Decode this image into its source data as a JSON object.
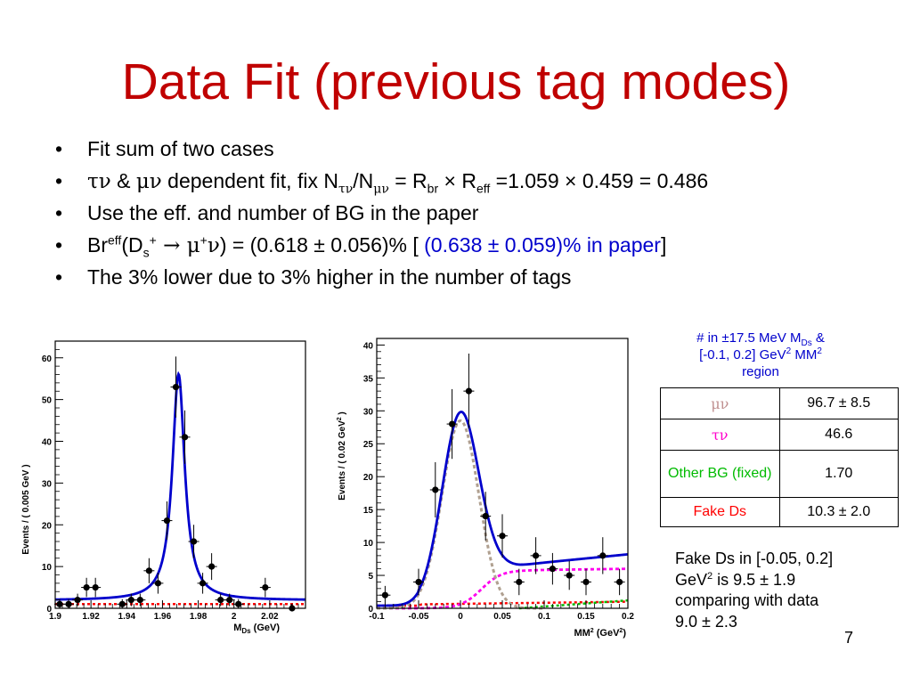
{
  "slide": {
    "title": "Data Fit (previous tag modes)",
    "page_number": "7"
  },
  "bullets": {
    "b1": "Fit sum of two cases",
    "b2": {
      "tau_nu": "τν",
      "amp": " & ",
      "mu_nu": "μν",
      "mid": " dependent fit, fix N",
      "sub1": "τν",
      "slash": "/N",
      "sub2": "μν",
      "eq": " = R",
      "sub3": "br",
      "times": " × R",
      "sub4": "eff",
      "tail": " =1.059 × 0.459 = 0.486"
    },
    "b3": "Use the eff. and number of BG in the paper",
    "b4": {
      "br": "Br",
      "sup_eff": "eff",
      "open": "(D",
      "sub_s": "s",
      "sup_plus": "+",
      "arrow": " → ",
      "mu": "μ",
      "sup_plus2": "+",
      "nu": "ν",
      "close": ") = (0.618 ± 0.056)%  [ ",
      "paper_val": "(0.638 ± 0.059)% in paper",
      "end": "]"
    },
    "b5": "The 3% lower due to 3% higher in the number of tags"
  },
  "region_note": {
    "l1a": "# in ±17.5 MeV M",
    "l1sub": "Ds",
    "l1b": " &",
    "l2a": "[-0.1, 0.2] GeV",
    "l2sup": "2",
    "l2b": " MM",
    "l2sup2": "2",
    "l3": "region"
  },
  "yield_table": {
    "rows": [
      {
        "label": "μν",
        "value": "96.7 ± 8.5",
        "color": "#c09090"
      },
      {
        "label": "τν",
        "value": "46.6",
        "color": "#ff00cc"
      },
      {
        "label": "Other BG (fixed)",
        "value": "1.70",
        "color": "#00bb00"
      },
      {
        "label": "Fake Ds",
        "value": "10.3 ± 2.0",
        "color": "#ff0000"
      }
    ]
  },
  "fake_note": {
    "t1": "Fake Ds in [-0.05, 0.2]",
    "t2a": "GeV",
    "t2sup": "2",
    "t2b": " is 9.5 ± 1.9",
    "t3": "comparing with data",
    "t4": "9.0 ± 2.3"
  },
  "chart_data": [
    {
      "type": "scatter",
      "ylabel": "Events / ( 0.005 GeV )",
      "xlabel_main": "M",
      "xlabel_sub": "Ds",
      "xlabel_unit": " (GeV)",
      "xlim": [
        1.9,
        2.04
      ],
      "ylim": [
        0,
        64
      ],
      "xticks": [
        1.9,
        1.92,
        1.94,
        1.96,
        1.98,
        2.0,
        2.02
      ],
      "xtick_labels": [
        "1.9",
        "1.92",
        "1.94",
        "1.96",
        "1.98",
        "2",
        "2.02"
      ],
      "yticks": [
        0,
        10,
        20,
        30,
        40,
        50,
        60
      ],
      "ytick_labels": [
        "0",
        "10",
        "20",
        "30",
        "40",
        "50",
        "60"
      ],
      "points": [
        {
          "x": 1.9025,
          "y": 1,
          "err": 1.2
        },
        {
          "x": 1.9075,
          "y": 1,
          "err": 1.2
        },
        {
          "x": 1.9125,
          "y": 2,
          "err": 1.5
        },
        {
          "x": 1.9175,
          "y": 5,
          "err": 2.3
        },
        {
          "x": 1.9225,
          "y": 5,
          "err": 2.3
        },
        {
          "x": 1.9375,
          "y": 1,
          "err": 1.2
        },
        {
          "x": 1.9425,
          "y": 2,
          "err": 1.5
        },
        {
          "x": 1.9475,
          "y": 2,
          "err": 1.5
        },
        {
          "x": 1.9525,
          "y": 9,
          "err": 3
        },
        {
          "x": 1.9575,
          "y": 6,
          "err": 2.5
        },
        {
          "x": 1.9625,
          "y": 21,
          "err": 4.6
        },
        {
          "x": 1.9675,
          "y": 53,
          "err": 7.3
        },
        {
          "x": 1.9725,
          "y": 41,
          "err": 6.4
        },
        {
          "x": 1.9775,
          "y": 16,
          "err": 4
        },
        {
          "x": 1.9825,
          "y": 6,
          "err": 2.5
        },
        {
          "x": 1.9875,
          "y": 10,
          "err": 3.2
        },
        {
          "x": 1.9925,
          "y": 2,
          "err": 1.5
        },
        {
          "x": 1.9975,
          "y": 2,
          "err": 1.5
        },
        {
          "x": 2.0025,
          "y": 1,
          "err": 1.2
        },
        {
          "x": 2.0175,
          "y": 5,
          "err": 2.3
        },
        {
          "x": 2.0325,
          "y": 0,
          "err": 1.1
        }
      ],
      "fit_signal": {
        "mean": 1.969,
        "width": 0.0042,
        "amplitude": 54.2,
        "baseline": 1.9
      },
      "fit_background_level": 1.0,
      "colors": {
        "fit": "#0000cc",
        "background": "#ff0000",
        "points": "#000000"
      }
    },
    {
      "type": "scatter",
      "ylabel": "Events / ( 0.02 GeV",
      "ylabel_sup": "2",
      "ylabel_end": " )",
      "xlabel_main": "MM",
      "xlabel_sup": "2",
      "xlabel_unit_a": " (GeV",
      "xlabel_unit_sup": "2",
      "xlabel_unit_b": ")",
      "xlim": [
        -0.1,
        0.2
      ],
      "ylim": [
        0,
        41
      ],
      "xticks": [
        -0.1,
        -0.05,
        0,
        0.05,
        0.1,
        0.15,
        0.2
      ],
      "xtick_labels": [
        "-0.1",
        "-0.05",
        "0",
        "0.05",
        "0.1",
        "0.15",
        "0.2"
      ],
      "yticks": [
        0,
        5,
        10,
        15,
        20,
        25,
        30,
        35,
        40
      ],
      "ytick_labels": [
        "0",
        "5",
        "10",
        "15",
        "20",
        "25",
        "30",
        "35",
        "40"
      ],
      "points": [
        {
          "x": -0.09,
          "y": 2,
          "err": 1.4
        },
        {
          "x": -0.05,
          "y": 4,
          "err": 2
        },
        {
          "x": -0.03,
          "y": 18,
          "err": 4.2
        },
        {
          "x": -0.01,
          "y": 28,
          "err": 5.3
        },
        {
          "x": 0.01,
          "y": 33,
          "err": 5.7
        },
        {
          "x": 0.03,
          "y": 14,
          "err": 3.7
        },
        {
          "x": 0.05,
          "y": 11,
          "err": 3.3
        },
        {
          "x": 0.07,
          "y": 4,
          "err": 2
        },
        {
          "x": 0.09,
          "y": 8,
          "err": 2.8
        },
        {
          "x": 0.11,
          "y": 6,
          "err": 2.4
        },
        {
          "x": 0.13,
          "y": 5,
          "err": 2.2
        },
        {
          "x": 0.15,
          "y": 4,
          "err": 2
        },
        {
          "x": 0.17,
          "y": 8,
          "err": 2.8
        },
        {
          "x": 0.19,
          "y": 4,
          "err": 2
        }
      ],
      "fit_mu_nu": {
        "mean": 0.0,
        "sigma": 0.022,
        "amplitude": 28.5
      },
      "fit_tau_nu": {
        "plateau": 5.8,
        "turn_on": 0.025,
        "width": 0.012,
        "slope_end": 6.0
      },
      "fit_other_bg": {
        "start": 0.07,
        "level_end": 1.2
      },
      "fit_fake": {
        "start": -0.05,
        "level": 0.6,
        "level_end": 1.0
      },
      "colors": {
        "total": "#0000cc",
        "mu_nu": "#b0a090",
        "tau_nu": "#ff00ee",
        "other_bg": "#00bb00",
        "fake": "#ff0000"
      }
    }
  ]
}
